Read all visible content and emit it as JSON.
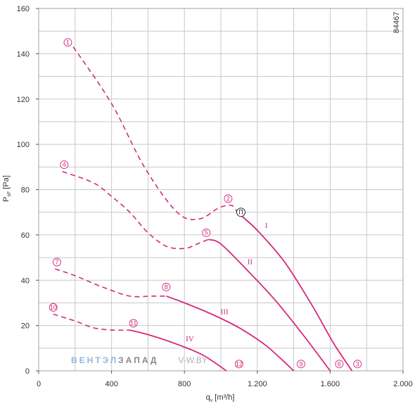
{
  "chart_data": {
    "type": "line",
    "title": "",
    "xlabel": "q",
    "xlabel_sub": "v",
    "xlabel_unit": " [m³/h]",
    "ylabel": "P",
    "ylabel_sub": "sF",
    "ylabel_unit": " [Pa]",
    "xlim": [
      0,
      2000
    ],
    "ylim": [
      0,
      160
    ],
    "x_ticks": [
      0,
      400,
      800,
      1200,
      1600,
      2000
    ],
    "x_tick_labels": [
      "0",
      "400",
      "800",
      "1.200",
      "1.600",
      "2.000"
    ],
    "y_ticks": [
      0,
      20,
      40,
      60,
      80,
      100,
      120,
      140,
      160
    ],
    "y_tick_labels": [
      "0",
      "20",
      "40",
      "60",
      "80",
      "100",
      "120",
      "140",
      "160"
    ],
    "grid": true,
    "code": "84467",
    "curve_color": "#d6287e",
    "series": [
      {
        "name": "I",
        "dashed": [
          [
            190,
            143
          ],
          [
            400,
            118
          ],
          [
            580,
            90
          ],
          [
            760,
            70
          ],
          [
            880,
            67
          ],
          [
            990,
            72
          ],
          [
            1060,
            73
          ],
          [
            1090,
            70
          ]
        ],
        "solid": [
          [
            1090,
            70
          ],
          [
            1200,
            62
          ],
          [
            1350,
            48
          ],
          [
            1500,
            29
          ],
          [
            1620,
            12
          ],
          [
            1720,
            0
          ]
        ]
      },
      {
        "name": "II",
        "dashed": [
          [
            130,
            88
          ],
          [
            300,
            83
          ],
          [
            400,
            77
          ],
          [
            500,
            70
          ],
          [
            600,
            61
          ],
          [
            700,
            55
          ],
          [
            800,
            54
          ],
          [
            870,
            56
          ],
          [
            930,
            58
          ]
        ],
        "solid": [
          [
            930,
            58
          ],
          [
            1000,
            56
          ],
          [
            1150,
            44
          ],
          [
            1300,
            31
          ],
          [
            1450,
            16
          ],
          [
            1600,
            0
          ]
        ]
      },
      {
        "name": "III",
        "dashed": [
          [
            90,
            45
          ],
          [
            200,
            42
          ],
          [
            350,
            37
          ],
          [
            500,
            33
          ],
          [
            620,
            33
          ],
          [
            700,
            33
          ]
        ],
        "solid": [
          [
            700,
            33
          ],
          [
            800,
            30
          ],
          [
            950,
            25
          ],
          [
            1100,
            19
          ],
          [
            1250,
            11
          ],
          [
            1400,
            0
          ]
        ]
      },
      {
        "name": "IV",
        "dashed": [
          [
            80,
            25
          ],
          [
            200,
            22
          ],
          [
            300,
            19
          ],
          [
            400,
            18
          ],
          [
            470,
            18
          ],
          [
            500,
            18
          ]
        ],
        "solid": [
          [
            500,
            18
          ],
          [
            600,
            16
          ],
          [
            750,
            12
          ],
          [
            900,
            7
          ],
          [
            1030,
            0
          ]
        ]
      }
    ],
    "series_labels": [
      {
        "text": "I",
        "x": 1250,
        "y": 63
      },
      {
        "text": "II",
        "x": 1160,
        "y": 47
      },
      {
        "text": "III",
        "x": 1020,
        "y": 25
      },
      {
        "text": "IV",
        "x": 830,
        "y": 13
      }
    ],
    "markers": [
      {
        "text": "1",
        "x": 160,
        "y": 145
      },
      {
        "text": "2",
        "x": 1040,
        "y": 76
      },
      {
        "text": "3",
        "x": 1750,
        "y": 3
      },
      {
        "text": "4",
        "x": 140,
        "y": 91
      },
      {
        "text": "5",
        "x": 920,
        "y": 61
      },
      {
        "text": "6",
        "x": 1650,
        "y": 3
      },
      {
        "text": "7",
        "x": 100,
        "y": 48
      },
      {
        "text": "8",
        "x": 700,
        "y": 37
      },
      {
        "text": "9",
        "x": 1440,
        "y": 3
      },
      {
        "text": "10",
        "x": 80,
        "y": 28
      },
      {
        "text": "11",
        "x": 520,
        "y": 21
      },
      {
        "text": "12",
        "x": 1100,
        "y": 3
      }
    ],
    "operating_point": {
      "text": "Π",
      "x": 1110,
      "y": 70
    }
  },
  "watermark": {
    "part1": "ВЕНТЭЛ",
    "part2": "ЗАПАД",
    "part3": "V-W.BY",
    "color1": "#8fb8e0",
    "color2": "#888888",
    "color3": "#b0b0b0"
  }
}
